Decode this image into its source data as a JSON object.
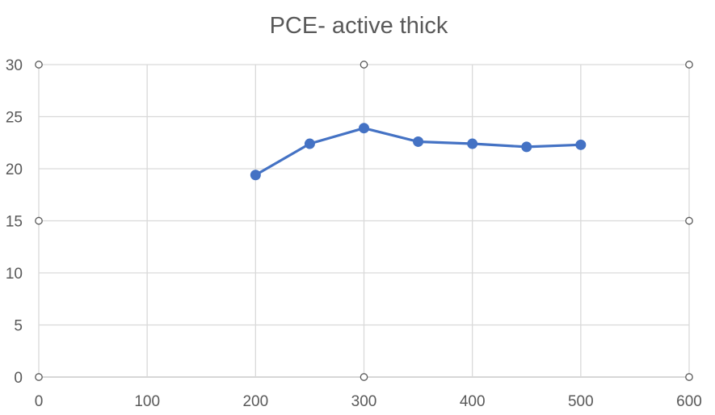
{
  "chart_data": {
    "type": "scatter",
    "title": "PCE- active thick",
    "xlabel": "",
    "ylabel": "",
    "xlim": [
      0,
      600
    ],
    "ylim": [
      0,
      30
    ],
    "x_ticks": [
      0,
      100,
      200,
      300,
      400,
      500,
      600
    ],
    "y_ticks": [
      0,
      5,
      10,
      15,
      20,
      25,
      30
    ],
    "grid": true,
    "legend": "none",
    "series": [
      {
        "x": [
          200,
          250,
          300,
          350,
          400,
          450,
          500
        ],
        "y": [
          19.4,
          22.4,
          23.9,
          22.6,
          22.4,
          22.1,
          22.3
        ],
        "color": "#4472c4",
        "markers": true,
        "line": "straight"
      }
    ]
  },
  "colors": {
    "series": "#4472c4",
    "grid": "#d9d9d9",
    "text": "#595959"
  },
  "selection": {
    "selected": true,
    "handle_shape": "circle"
  }
}
